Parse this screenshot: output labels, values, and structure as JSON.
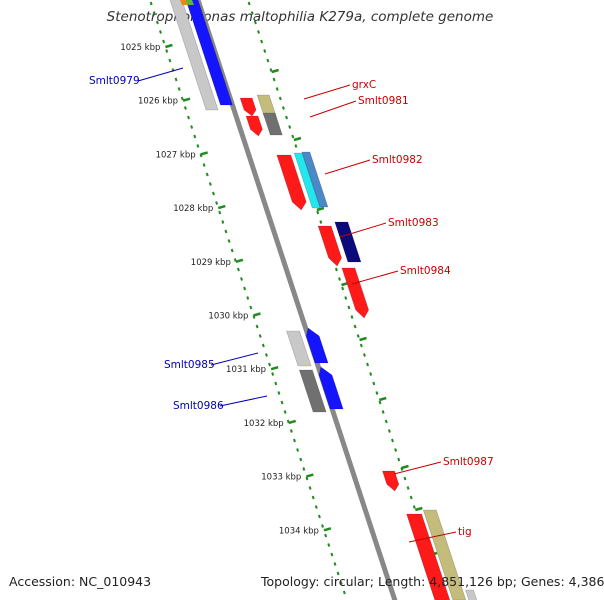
{
  "title": "Stenotrophomonas maltophilia K279a, complete genome",
  "footer": {
    "accession_label": "Accession:",
    "accession_value": "NC_010943",
    "topology_label": "Topology:",
    "topology_value": "circular;",
    "length_label": "Length:",
    "length_value": "4,851,126 bp;",
    "genes_label": "Genes:",
    "genes_value": "4,386"
  },
  "colors": {
    "backbone": "#888888",
    "ruler": "#1e8c1e",
    "forward_label": "#c80000",
    "reverse_label": "#0000b4",
    "red": "#ff1a1a",
    "blue": "#1414ff",
    "navy": "#0a0a7a",
    "cyan": "#22e8ee",
    "steel": "#4a88c8",
    "khaki": "#c4bc7a",
    "gray_dark": "#707070",
    "gray_light": "#c8c8c8"
  },
  "ruler_ticks": [
    {
      "label": "1025 kbp",
      "kbp": 1025
    },
    {
      "label": "1026 kbp",
      "kbp": 1026
    },
    {
      "label": "1027 kbp",
      "kbp": 1027
    },
    {
      "label": "1028 kbp",
      "kbp": 1028
    },
    {
      "label": "1029 kbp",
      "kbp": 1029
    },
    {
      "label": "1030 kbp",
      "kbp": 1030
    },
    {
      "label": "1031 kbp",
      "kbp": 1031
    },
    {
      "label": "1032 kbp",
      "kbp": 1032
    },
    {
      "label": "1033 kbp",
      "kbp": 1033
    },
    {
      "label": "1034 kbp",
      "kbp": 1034
    }
  ],
  "gene_labels": [
    {
      "name": "Smlt0979",
      "strand": "reverse"
    },
    {
      "name": "grxC",
      "strand": "forward"
    },
    {
      "name": "Smlt0981",
      "strand": "forward"
    },
    {
      "name": "Smlt0982",
      "strand": "forward"
    },
    {
      "name": "Smlt0983",
      "strand": "forward"
    },
    {
      "name": "Smlt0984",
      "strand": "forward"
    },
    {
      "name": "Smlt0985",
      "strand": "reverse"
    },
    {
      "name": "Smlt0986",
      "strand": "reverse"
    },
    {
      "name": "Smlt0987",
      "strand": "forward"
    },
    {
      "name": "tig",
      "strand": "forward"
    }
  ]
}
